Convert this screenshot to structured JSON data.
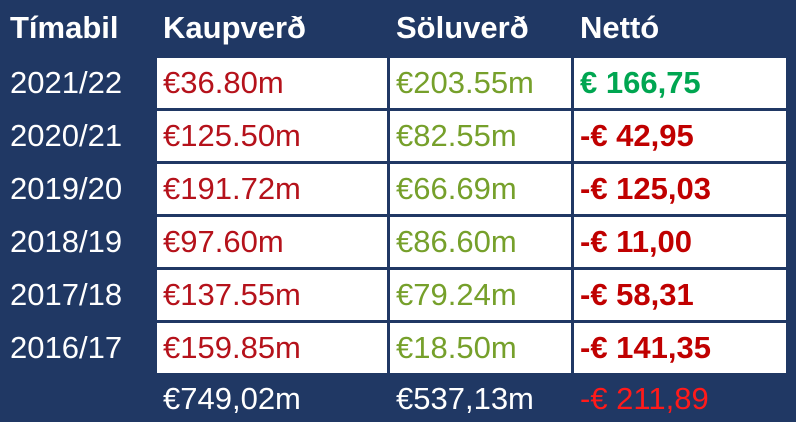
{
  "table": {
    "header": [
      "Tímabil",
      "Kaupverð",
      "Söluverð",
      "Nettó"
    ],
    "rows": [
      [
        "2021/22",
        "€36.80m",
        "€203.55m",
        "€ 166,75"
      ],
      [
        "2020/21",
        "€125.50m",
        "€82.55m",
        "-€ 42,95"
      ],
      [
        "2019/20",
        "€191.72m",
        "€66.69m",
        "-€ 125,03"
      ],
      [
        "2018/19",
        "€97.60m",
        "€86.60m",
        "-€ 11,00"
      ],
      [
        "2017/18",
        "€137.55m",
        "€79.24m",
        "-€ 58,31"
      ],
      [
        "2016/17",
        "€159.85m",
        "€18.50m",
        "-€ 141,35"
      ]
    ],
    "total": [
      "€749,02m",
      "€537,13m",
      "-€ 211,89"
    ]
  }
}
